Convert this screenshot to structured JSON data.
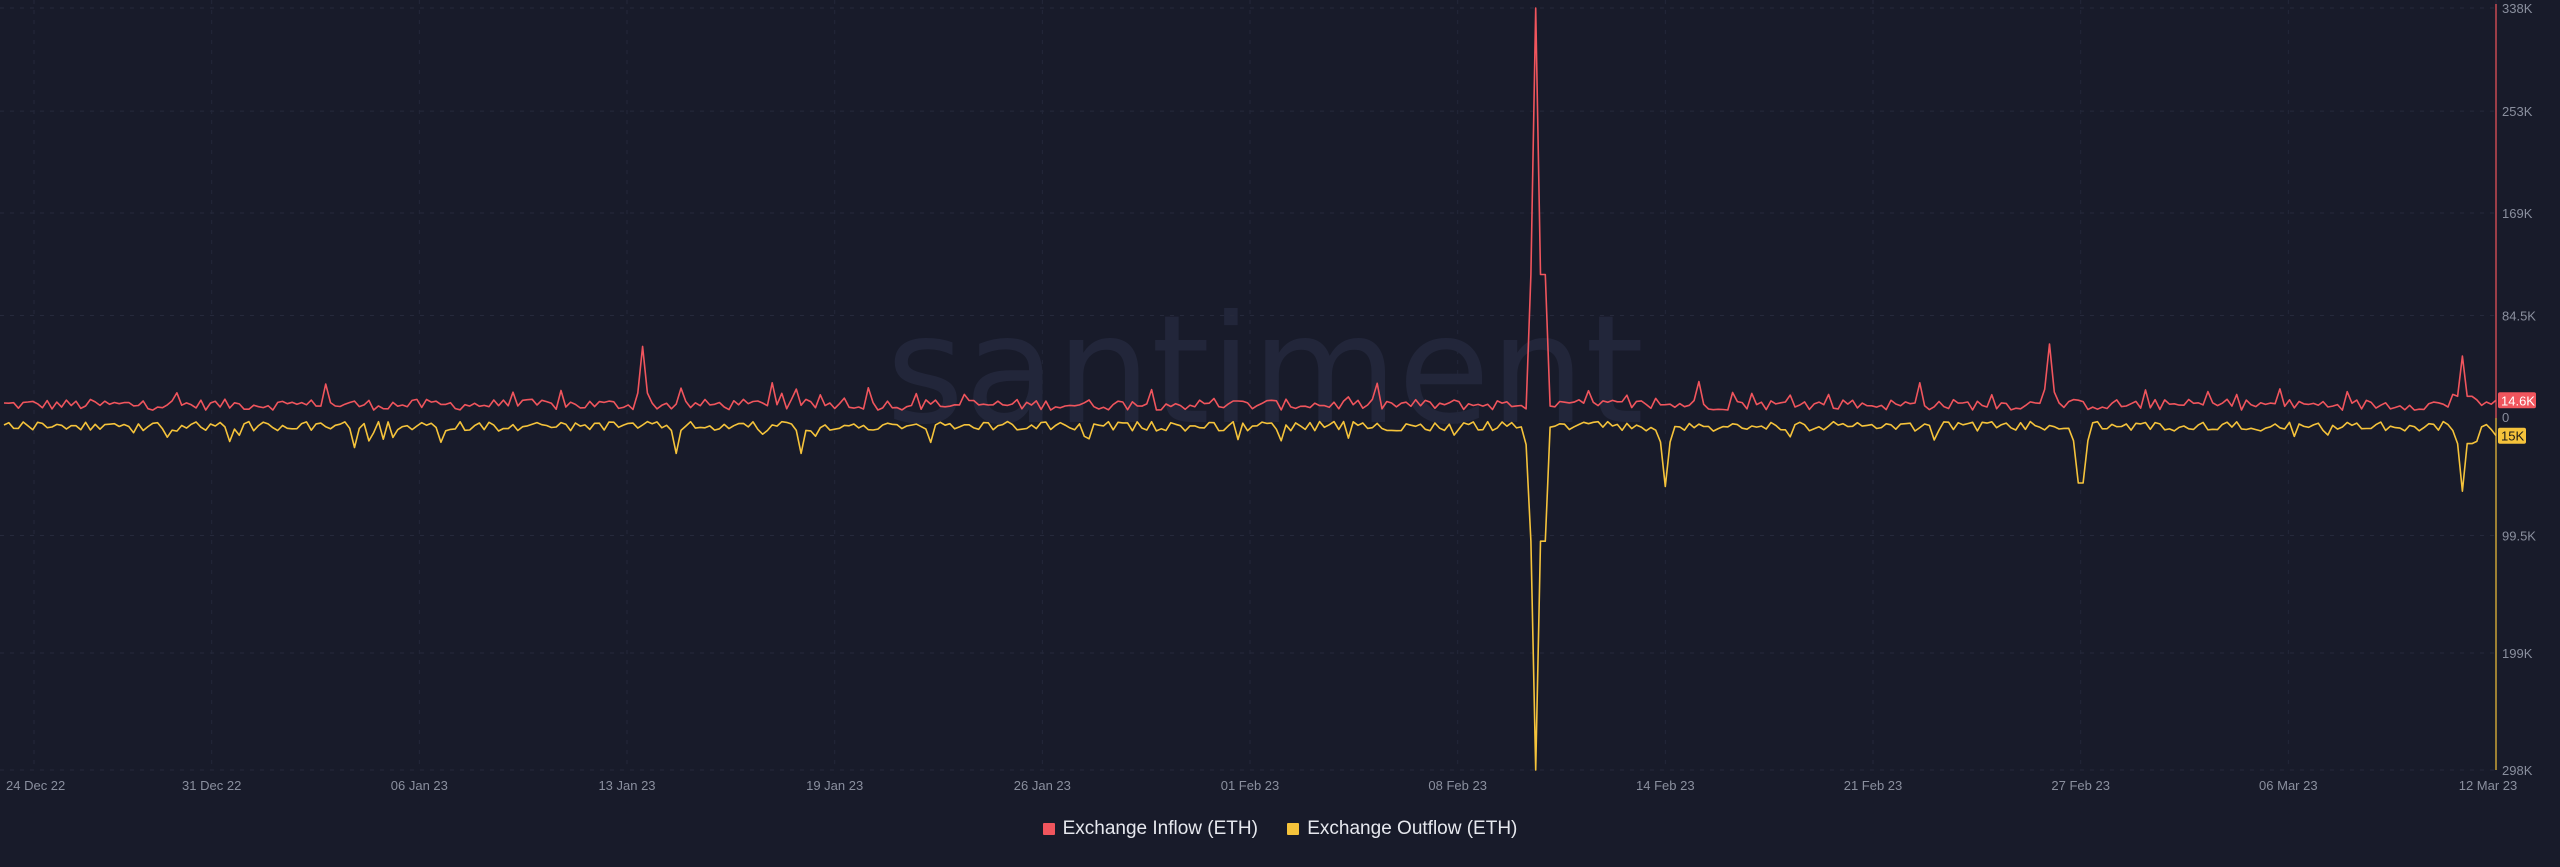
{
  "chart_data": {
    "type": "line",
    "watermark": "santiment",
    "x_ticks": [
      "24 Dec 22",
      "31 Dec 22",
      "06 Jan 23",
      "13 Jan 23",
      "19 Jan 23",
      "26 Jan 23",
      "01 Feb 23",
      "08 Feb 23",
      "14 Feb 23",
      "21 Feb 23",
      "27 Feb 23",
      "06 Mar 23",
      "12 Mar 23"
    ],
    "x_range": [
      "2022-12-24",
      "2023-03-12"
    ],
    "y_ticks_upper": [
      "338K",
      "253K",
      "169K",
      "84.5K"
    ],
    "y_zero": "0",
    "y_ticks_lower": [
      "99.5K",
      "199K",
      "298K"
    ],
    "grid": true,
    "legend_position": "bottom-center",
    "series": [
      {
        "name": "Exchange Inflow (ETH)",
        "color": "#f0555d",
        "axis": "upward from 0, max 338K",
        "last_value_label": "14.6K",
        "peaks": [
          {
            "date": "2023-01-03",
            "value": 28000
          },
          {
            "date": "2023-01-13",
            "value": 59000
          },
          {
            "date": "2023-01-17",
            "value": 29000
          },
          {
            "date": "2023-02-10",
            "value": 338000
          },
          {
            "date": "2023-02-15",
            "value": 30000
          },
          {
            "date": "2023-02-22",
            "value": 29000
          },
          {
            "date": "2023-02-26",
            "value": 61000
          },
          {
            "date": "2023-03-11",
            "value": 51000
          }
        ]
      },
      {
        "name": "Exchange Outflow (ETH)",
        "color": "#f5c33b",
        "axis": "downward from 0, max 298K",
        "last_value_label": "15K",
        "troughs": [
          {
            "date": "2023-01-04",
            "value": 25000
          },
          {
            "date": "2023-01-14",
            "value": 30000
          },
          {
            "date": "2023-01-18",
            "value": 30000
          },
          {
            "date": "2023-02-10",
            "value": 298000
          },
          {
            "date": "2023-02-14",
            "value": 58000
          },
          {
            "date": "2023-02-27",
            "value": 55000
          },
          {
            "date": "2023-03-11",
            "value": 62000
          }
        ]
      }
    ]
  }
}
